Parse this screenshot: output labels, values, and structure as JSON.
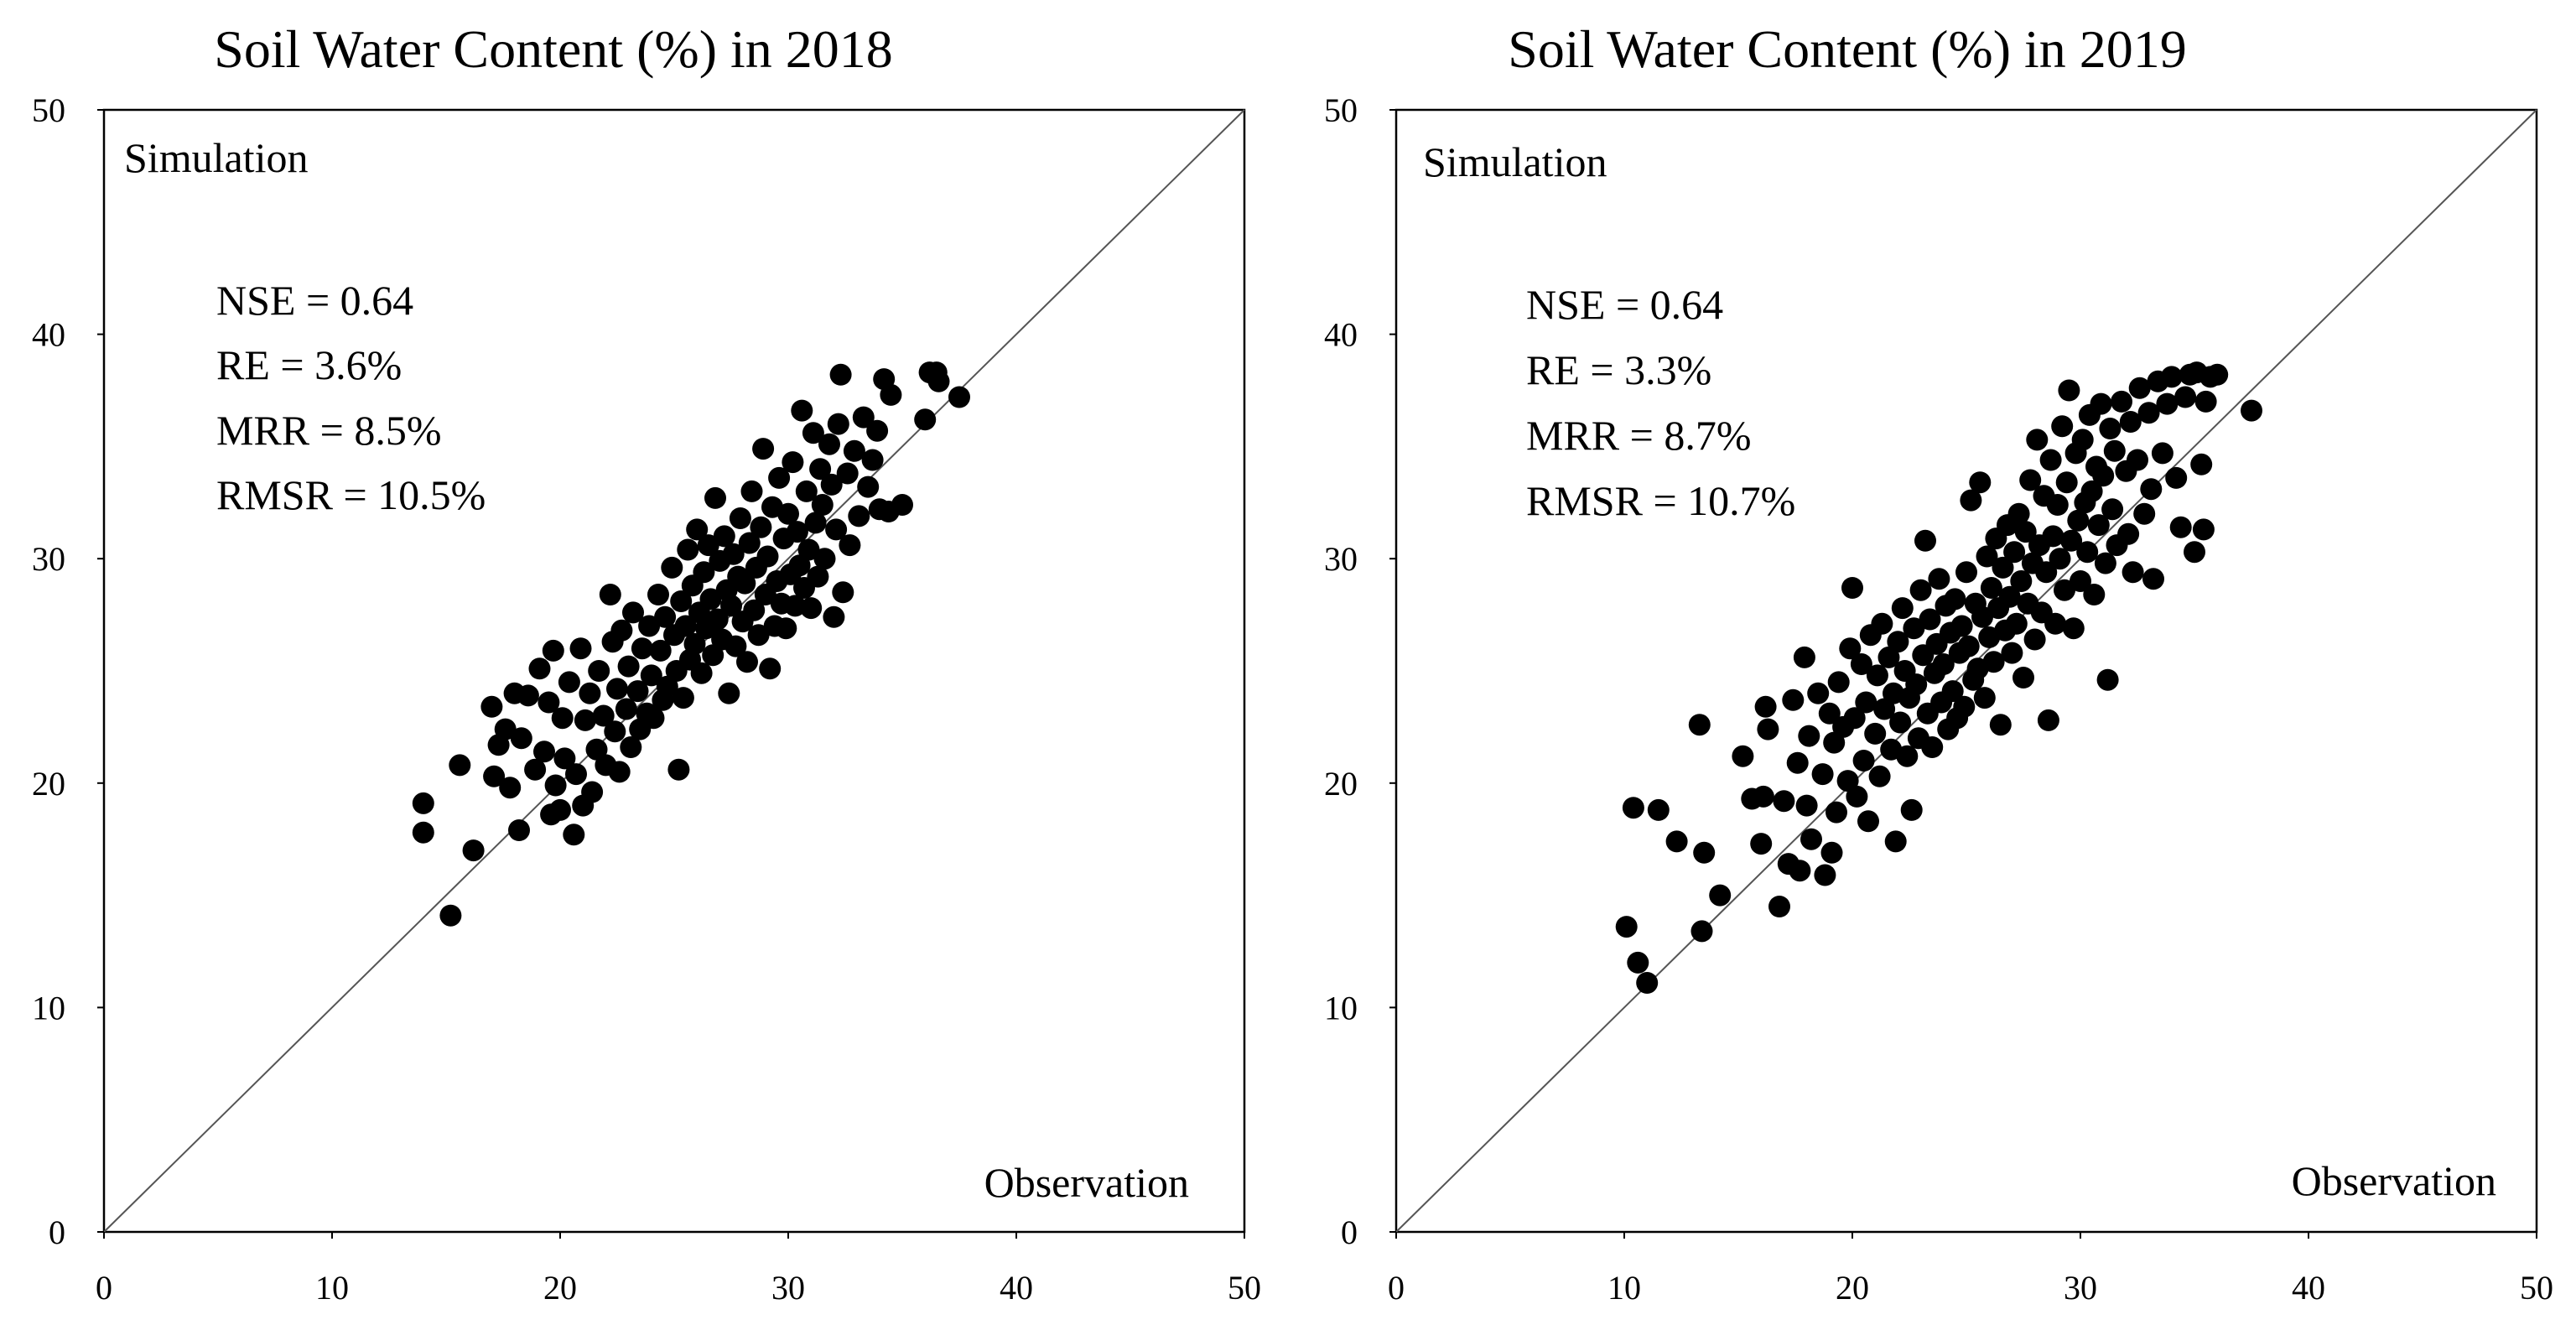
{
  "chart_data": [
    {
      "type": "scatter",
      "title": "Soil Water Content (%) in 2018",
      "xlabel": "Observation",
      "ylabel": "Simulation",
      "xlim": [
        0,
        50
      ],
      "ylim": [
        0,
        50
      ],
      "xticks": [
        "0",
        "10",
        "20",
        "30",
        "40",
        "50"
      ],
      "yticks": [
        "0",
        "10",
        "20",
        "30",
        "40",
        "50"
      ],
      "reference_line": "1:1",
      "stats": [
        "NSE = 0.64",
        "RE = 3.6%",
        "MRR = 8.5%",
        "RMSR = 10.5%"
      ],
      "points": [
        [
          14.0,
          17.8
        ],
        [
          14.0,
          19.1
        ],
        [
          15.2,
          14.1
        ],
        [
          15.6,
          20.8
        ],
        [
          16.2,
          17.0
        ],
        [
          17.0,
          23.4
        ],
        [
          17.1,
          20.3
        ],
        [
          17.3,
          21.7
        ],
        [
          17.6,
          22.4
        ],
        [
          17.8,
          19.8
        ],
        [
          18.0,
          24.0
        ],
        [
          18.2,
          17.9
        ],
        [
          18.3,
          22.0
        ],
        [
          18.6,
          23.9
        ],
        [
          18.9,
          20.6
        ],
        [
          19.1,
          25.1
        ],
        [
          19.3,
          21.4
        ],
        [
          19.5,
          23.6
        ],
        [
          19.6,
          18.6
        ],
        [
          19.7,
          25.9
        ],
        [
          19.8,
          19.9
        ],
        [
          20.0,
          18.8
        ],
        [
          20.1,
          22.9
        ],
        [
          20.2,
          21.1
        ],
        [
          20.4,
          24.5
        ],
        [
          20.6,
          17.7
        ],
        [
          20.7,
          20.4
        ],
        [
          20.9,
          26.0
        ],
        [
          21.0,
          19.0
        ],
        [
          21.1,
          22.8
        ],
        [
          21.3,
          24.0
        ],
        [
          21.4,
          19.6
        ],
        [
          21.6,
          21.5
        ],
        [
          21.7,
          25.0
        ],
        [
          21.9,
          23.0
        ],
        [
          22.0,
          20.8
        ],
        [
          22.2,
          28.4
        ],
        [
          22.3,
          26.3
        ],
        [
          22.4,
          22.3
        ],
        [
          22.5,
          24.2
        ],
        [
          22.6,
          20.5
        ],
        [
          22.7,
          26.8
        ],
        [
          22.9,
          23.3
        ],
        [
          23.0,
          25.2
        ],
        [
          23.1,
          21.6
        ],
        [
          23.2,
          27.6
        ],
        [
          23.4,
          24.1
        ],
        [
          23.5,
          22.4
        ],
        [
          23.6,
          26.0
        ],
        [
          23.8,
          23.1
        ],
        [
          23.9,
          27.0
        ],
        [
          24.0,
          24.8
        ],
        [
          24.1,
          22.9
        ],
        [
          24.3,
          28.4
        ],
        [
          24.4,
          25.9
        ],
        [
          24.5,
          23.7
        ],
        [
          24.6,
          27.4
        ],
        [
          24.7,
          24.3
        ],
        [
          24.9,
          29.6
        ],
        [
          25.0,
          26.6
        ],
        [
          25.1,
          25.0
        ],
        [
          25.2,
          20.6
        ],
        [
          25.3,
          28.1
        ],
        [
          25.4,
          23.8
        ],
        [
          25.5,
          27.0
        ],
        [
          25.6,
          30.4
        ],
        [
          25.7,
          25.5
        ],
        [
          25.8,
          28.8
        ],
        [
          25.9,
          26.2
        ],
        [
          26.0,
          31.3
        ],
        [
          26.1,
          27.6
        ],
        [
          26.2,
          24.9
        ],
        [
          26.3,
          29.4
        ],
        [
          26.4,
          26.9
        ],
        [
          26.5,
          30.6
        ],
        [
          26.6,
          28.2
        ],
        [
          26.7,
          25.7
        ],
        [
          26.8,
          32.7
        ],
        [
          26.9,
          27.3
        ],
        [
          27.0,
          29.9
        ],
        [
          27.1,
          26.4
        ],
        [
          27.2,
          31.0
        ],
        [
          27.3,
          28.6
        ],
        [
          27.4,
          24.0
        ],
        [
          27.5,
          27.9
        ],
        [
          27.6,
          30.2
        ],
        [
          27.7,
          26.1
        ],
        [
          27.8,
          29.2
        ],
        [
          27.9,
          31.8
        ],
        [
          28.0,
          27.2
        ],
        [
          28.1,
          28.9
        ],
        [
          28.2,
          25.4
        ],
        [
          28.3,
          30.7
        ],
        [
          28.4,
          33.0
        ],
        [
          28.5,
          27.7
        ],
        [
          28.6,
          29.6
        ],
        [
          28.7,
          26.6
        ],
        [
          28.8,
          31.4
        ],
        [
          28.9,
          34.9
        ],
        [
          29.0,
          28.4
        ],
        [
          29.1,
          30.1
        ],
        [
          29.2,
          25.1
        ],
        [
          29.3,
          32.3
        ],
        [
          29.4,
          27.0
        ],
        [
          29.5,
          29.0
        ],
        [
          29.6,
          33.6
        ],
        [
          29.7,
          28.0
        ],
        [
          29.8,
          30.9
        ],
        [
          29.9,
          26.9
        ],
        [
          30.0,
          32.0
        ],
        [
          30.1,
          29.3
        ],
        [
          30.2,
          34.3
        ],
        [
          30.3,
          27.9
        ],
        [
          30.4,
          31.2
        ],
        [
          30.5,
          29.7
        ],
        [
          30.6,
          36.6
        ],
        [
          30.7,
          28.7
        ],
        [
          30.8,
          33.0
        ],
        [
          30.9,
          30.4
        ],
        [
          31.0,
          27.8
        ],
        [
          31.1,
          35.6
        ],
        [
          31.2,
          31.6
        ],
        [
          31.3,
          29.2
        ],
        [
          31.4,
          34.0
        ],
        [
          31.5,
          32.4
        ],
        [
          31.6,
          30.0
        ],
        [
          31.8,
          35.1
        ],
        [
          31.9,
          33.3
        ],
        [
          32.0,
          27.4
        ],
        [
          32.1,
          31.3
        ],
        [
          32.2,
          36.0
        ],
        [
          32.3,
          38.2
        ],
        [
          32.4,
          28.5
        ],
        [
          32.6,
          33.8
        ],
        [
          32.7,
          30.6
        ],
        [
          32.9,
          34.8
        ],
        [
          33.1,
          31.9
        ],
        [
          33.3,
          36.3
        ],
        [
          33.5,
          33.2
        ],
        [
          33.7,
          34.4
        ],
        [
          33.9,
          35.7
        ],
        [
          34.0,
          32.2
        ],
        [
          34.2,
          38.0
        ],
        [
          34.4,
          32.1
        ],
        [
          34.5,
          37.3
        ],
        [
          35.0,
          32.4
        ],
        [
          36.0,
          36.2
        ],
        [
          36.2,
          38.3
        ],
        [
          36.6,
          37.9
        ],
        [
          36.5,
          38.3
        ],
        [
          37.5,
          37.2
        ]
      ]
    },
    {
      "type": "scatter",
      "title": "Soil Water Content (%) in 2019",
      "xlabel": "Observation",
      "ylabel": "Simulation",
      "xlim": [
        0,
        50
      ],
      "ylim": [
        0,
        50
      ],
      "xticks": [
        "0",
        "10",
        "20",
        "30",
        "40",
        "50"
      ],
      "yticks": [
        "0",
        "10",
        "20",
        "30",
        "40",
        "50"
      ],
      "reference_line": "1:1",
      "stats": [
        "NSE = 0.64",
        "RE = 3.3%",
        "MRR = 8.7%",
        "RMSR = 10.7%"
      ],
      "points": [
        [
          10.1,
          13.6
        ],
        [
          10.4,
          18.9
        ],
        [
          10.6,
          12.0
        ],
        [
          11.0,
          11.1
        ],
        [
          11.5,
          18.8
        ],
        [
          12.3,
          17.4
        ],
        [
          13.3,
          22.6
        ],
        [
          13.4,
          13.4
        ],
        [
          13.5,
          16.9
        ],
        [
          14.2,
          15.0
        ],
        [
          15.2,
          21.2
        ],
        [
          15.6,
          19.3
        ],
        [
          16.0,
          17.3
        ],
        [
          16.1,
          19.4
        ],
        [
          16.2,
          23.4
        ],
        [
          16.3,
          22.4
        ],
        [
          16.8,
          14.5
        ],
        [
          17.0,
          19.2
        ],
        [
          17.2,
          16.4
        ],
        [
          17.4,
          23.7
        ],
        [
          17.6,
          20.9
        ],
        [
          17.7,
          16.1
        ],
        [
          17.9,
          25.6
        ],
        [
          18.0,
          19.0
        ],
        [
          18.1,
          22.1
        ],
        [
          18.2,
          17.5
        ],
        [
          18.5,
          24.0
        ],
        [
          18.7,
          20.4
        ],
        [
          18.8,
          15.9
        ],
        [
          19.0,
          23.1
        ],
        [
          19.1,
          16.9
        ],
        [
          19.2,
          21.8
        ],
        [
          19.3,
          18.7
        ],
        [
          19.4,
          24.5
        ],
        [
          19.6,
          22.5
        ],
        [
          19.8,
          20.1
        ],
        [
          19.9,
          26.0
        ],
        [
          20.0,
          28.7
        ],
        [
          20.1,
          22.9
        ],
        [
          20.2,
          19.4
        ],
        [
          20.4,
          25.3
        ],
        [
          20.5,
          21.0
        ],
        [
          20.6,
          23.6
        ],
        [
          20.7,
          18.3
        ],
        [
          20.8,
          26.6
        ],
        [
          21.0,
          22.2
        ],
        [
          21.1,
          24.8
        ],
        [
          21.2,
          20.3
        ],
        [
          21.3,
          27.1
        ],
        [
          21.4,
          23.3
        ],
        [
          21.6,
          25.6
        ],
        [
          21.7,
          21.5
        ],
        [
          21.8,
          24.0
        ],
        [
          21.9,
          17.4
        ],
        [
          22.0,
          26.3
        ],
        [
          22.1,
          22.7
        ],
        [
          22.2,
          27.8
        ],
        [
          22.3,
          25.0
        ],
        [
          22.4,
          21.2
        ],
        [
          22.5,
          23.8
        ],
        [
          22.6,
          18.8
        ],
        [
          22.7,
          26.9
        ],
        [
          22.8,
          24.4
        ],
        [
          22.9,
          22.0
        ],
        [
          23.0,
          28.6
        ],
        [
          23.1,
          25.7
        ],
        [
          23.2,
          30.8
        ],
        [
          23.3,
          23.1
        ],
        [
          23.4,
          27.3
        ],
        [
          23.5,
          21.6
        ],
        [
          23.6,
          24.9
        ],
        [
          23.7,
          26.2
        ],
        [
          23.8,
          29.1
        ],
        [
          23.9,
          23.6
        ],
        [
          24.0,
          25.3
        ],
        [
          24.1,
          27.9
        ],
        [
          24.2,
          22.4
        ],
        [
          24.3,
          26.7
        ],
        [
          24.4,
          24.1
        ],
        [
          24.5,
          28.2
        ],
        [
          24.6,
          22.9
        ],
        [
          24.7,
          25.8
        ],
        [
          24.8,
          27.0
        ],
        [
          24.9,
          23.4
        ],
        [
          25.0,
          29.4
        ],
        [
          25.1,
          26.1
        ],
        [
          25.2,
          32.6
        ],
        [
          25.3,
          24.6
        ],
        [
          25.4,
          28.0
        ],
        [
          25.5,
          25.1
        ],
        [
          25.6,
          33.4
        ],
        [
          25.7,
          27.4
        ],
        [
          25.8,
          23.8
        ],
        [
          25.9,
          30.1
        ],
        [
          26.0,
          26.5
        ],
        [
          26.1,
          28.7
        ],
        [
          26.2,
          25.4
        ],
        [
          26.3,
          30.9
        ],
        [
          26.4,
          27.8
        ],
        [
          26.5,
          22.6
        ],
        [
          26.6,
          29.6
        ],
        [
          26.7,
          26.8
        ],
        [
          26.8,
          31.5
        ],
        [
          26.9,
          28.3
        ],
        [
          27.0,
          25.8
        ],
        [
          27.1,
          30.3
        ],
        [
          27.2,
          27.1
        ],
        [
          27.3,
          32.0
        ],
        [
          27.4,
          29.0
        ],
        [
          27.5,
          24.7
        ],
        [
          27.6,
          31.2
        ],
        [
          27.7,
          28.0
        ],
        [
          27.8,
          33.5
        ],
        [
          27.9,
          29.8
        ],
        [
          28.0,
          26.4
        ],
        [
          28.1,
          35.3
        ],
        [
          28.2,
          30.6
        ],
        [
          28.3,
          27.6
        ],
        [
          28.4,
          32.8
        ],
        [
          28.5,
          29.4
        ],
        [
          28.6,
          22.8
        ],
        [
          28.7,
          34.4
        ],
        [
          28.8,
          31.0
        ],
        [
          28.9,
          27.1
        ],
        [
          29.0,
          32.4
        ],
        [
          29.1,
          30.0
        ],
        [
          29.2,
          35.9
        ],
        [
          29.3,
          28.6
        ],
        [
          29.4,
          33.4
        ],
        [
          29.5,
          37.5
        ],
        [
          29.6,
          30.8
        ],
        [
          29.7,
          26.9
        ],
        [
          29.8,
          34.7
        ],
        [
          29.9,
          31.7
        ],
        [
          30.0,
          29.0
        ],
        [
          30.1,
          35.3
        ],
        [
          30.2,
          32.5
        ],
        [
          30.3,
          30.3
        ],
        [
          30.4,
          36.4
        ],
        [
          30.5,
          33.0
        ],
        [
          30.6,
          28.4
        ],
        [
          30.7,
          34.1
        ],
        [
          30.8,
          31.5
        ],
        [
          30.9,
          36.9
        ],
        [
          31.0,
          33.7
        ],
        [
          31.1,
          29.8
        ],
        [
          31.2,
          24.6
        ],
        [
          31.3,
          35.8
        ],
        [
          31.4,
          32.2
        ],
        [
          31.5,
          34.8
        ],
        [
          31.6,
          30.6
        ],
        [
          31.8,
          37.0
        ],
        [
          32.0,
          33.9
        ],
        [
          32.1,
          31.1
        ],
        [
          32.2,
          36.1
        ],
        [
          32.3,
          29.4
        ],
        [
          32.5,
          34.4
        ],
        [
          32.6,
          37.6
        ],
        [
          32.8,
          32.0
        ],
        [
          33.0,
          36.5
        ],
        [
          33.1,
          33.1
        ],
        [
          33.2,
          29.1
        ],
        [
          33.4,
          37.9
        ],
        [
          33.6,
          34.7
        ],
        [
          33.8,
          36.9
        ],
        [
          34.0,
          38.1
        ],
        [
          34.2,
          33.6
        ],
        [
          34.4,
          31.4
        ],
        [
          34.6,
          37.2
        ],
        [
          34.8,
          38.2
        ],
        [
          35.0,
          30.3
        ],
        [
          35.1,
          38.3
        ],
        [
          35.3,
          34.2
        ],
        [
          35.4,
          31.3
        ],
        [
          35.5,
          37.0
        ],
        [
          35.7,
          38.1
        ],
        [
          36.0,
          38.2
        ],
        [
          37.5,
          36.6
        ]
      ]
    }
  ]
}
